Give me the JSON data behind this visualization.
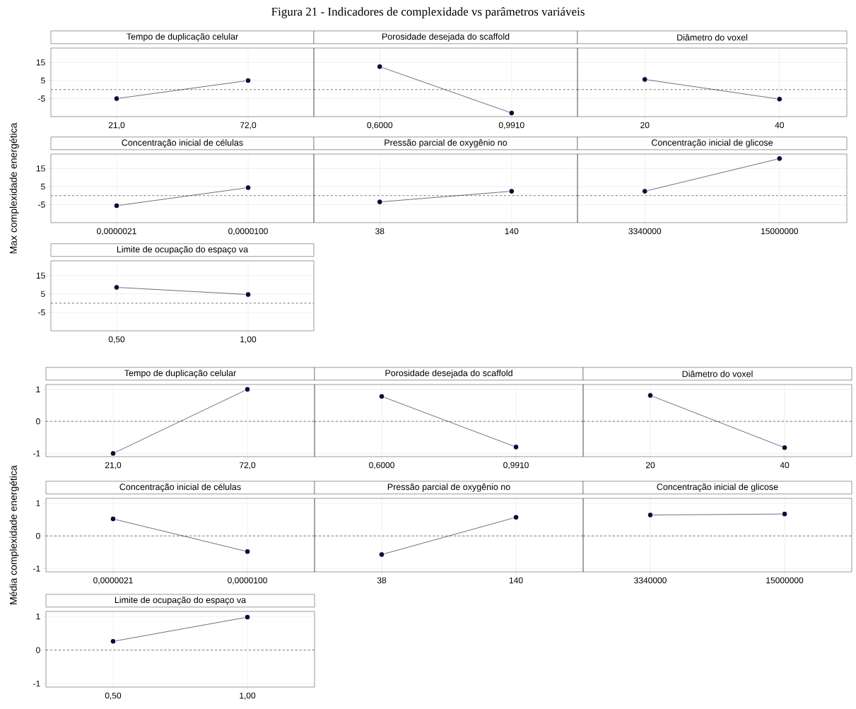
{
  "chart_data": [
    {
      "type": "line",
      "title": "Tempo de duplicação celular",
      "annotations": [
        "Figura 21 - Indicadores de complexidade vs parâmetros variáveis"
      ],
      "categories": [
        "21,0",
        "72,0"
      ],
      "values": [
        -5,
        5
      ],
      "color": "#0b0b3b",
      "marker": "circle",
      "grid": true,
      "ylim": [
        -15,
        23
      ],
      "yticks": [
        -5,
        5,
        15
      ],
      "ref_lines": [
        {
          "axis": "y",
          "value": 0,
          "line_style": "dashed"
        }
      ]
    },
    {
      "type": "line",
      "title": "Porosidade desejada do scaffold",
      "categories": [
        "0,6000",
        "0,9910"
      ],
      "values": [
        12.7,
        -13
      ],
      "color": "#0b0b3b",
      "marker": "circle",
      "grid": true,
      "ylim": [
        -15,
        23
      ],
      "yticks": [
        -5,
        5,
        15
      ],
      "tick_labels": "x",
      "ref_lines": [
        {
          "axis": "y",
          "value": 0,
          "line_style": "dashed"
        }
      ]
    },
    {
      "type": "line",
      "title": "Diâmetro do voxel",
      "categories": [
        "20",
        "40"
      ],
      "values": [
        5.6,
        -5.3
      ],
      "color": "#0b0b3b",
      "marker": "circle",
      "grid": true,
      "ylim": [
        -15,
        23
      ],
      "yticks": [
        -5,
        5,
        15
      ],
      "tick_labels": "x",
      "ref_lines": [
        {
          "axis": "y",
          "value": 0,
          "line_style": "dashed"
        }
      ]
    },
    {
      "type": "line",
      "title": "Concentração inicial de células",
      "ylabel": "Max complexidade energética",
      "categories": [
        "0,0000021",
        "0,0000100"
      ],
      "values": [
        -5.6,
        4.4
      ],
      "color": "#0b0b3b",
      "marker": "circle",
      "grid": true,
      "ylim": [
        -15,
        23
      ],
      "yticks": [
        -5,
        5,
        15
      ],
      "ref_lines": [
        {
          "axis": "y",
          "value": 0,
          "line_style": "dashed"
        }
      ]
    },
    {
      "type": "line",
      "title": "Pressão parcial de oxygênio no",
      "categories": [
        "38",
        "140"
      ],
      "values": [
        -3.5,
        2.4
      ],
      "color": "#0b0b3b",
      "marker": "circle",
      "grid": true,
      "ylim": [
        -15,
        23
      ],
      "yticks": [
        -5,
        5,
        15
      ],
      "tick_labels": "x",
      "ref_lines": [
        {
          "axis": "y",
          "value": 0,
          "line_style": "dashed"
        }
      ]
    },
    {
      "type": "line",
      "title": "Concentração inicial de glicose",
      "categories": [
        "3340000",
        "15000000"
      ],
      "values": [
        2.4,
        20.5
      ],
      "color": "#0b0b3b",
      "marker": "circle",
      "grid": true,
      "ylim": [
        -15,
        23
      ],
      "yticks": [
        -5,
        5,
        15
      ],
      "tick_labels": "x",
      "ref_lines": [
        {
          "axis": "y",
          "value": 0,
          "line_style": "dashed"
        }
      ]
    },
    {
      "type": "line",
      "title": "Limite de ocupação do espaço va",
      "categories": [
        "0,50",
        "1,00"
      ],
      "values": [
        8.6,
        4.7
      ],
      "color": "#0b0b3b",
      "marker": "circle",
      "grid": true,
      "ylim": [
        -15,
        23
      ],
      "yticks": [
        -5,
        5,
        15
      ],
      "ref_lines": [
        {
          "axis": "y",
          "value": 0,
          "line_style": "dashed"
        }
      ]
    },
    {
      "type": "line",
      "title": "Tempo de duplicação celular",
      "categories": [
        "21,0",
        "72,0"
      ],
      "values": [
        -1.0,
        1.0
      ],
      "color": "#0b0b3b",
      "marker": "circle",
      "grid": true,
      "ylim": [
        -1.1,
        1.15
      ],
      "yticks": [
        -1,
        0,
        1
      ],
      "ref_lines": [
        {
          "axis": "y",
          "value": 0,
          "line_style": "dashed"
        }
      ]
    },
    {
      "type": "line",
      "title": "Porosidade desejada do scaffold",
      "categories": [
        "0,6000",
        "0,9910"
      ],
      "values": [
        0.78,
        -0.8
      ],
      "color": "#0b0b3b",
      "marker": "circle",
      "grid": true,
      "ylim": [
        -1.1,
        1.15
      ],
      "yticks": [
        -1,
        0,
        1
      ],
      "tick_labels": "x",
      "ref_lines": [
        {
          "axis": "y",
          "value": 0,
          "line_style": "dashed"
        }
      ]
    },
    {
      "type": "line",
      "title": "Diâmetro do voxel",
      "categories": [
        "20",
        "40"
      ],
      "values": [
        0.81,
        -0.82
      ],
      "color": "#0b0b3b",
      "marker": "circle",
      "grid": true,
      "ylim": [
        -1.1,
        1.15
      ],
      "yticks": [
        -1,
        0,
        1
      ],
      "tick_labels": "x",
      "ref_lines": [
        {
          "axis": "y",
          "value": 0,
          "line_style": "dashed"
        }
      ]
    },
    {
      "type": "line",
      "title": "Concentração inicial de células",
      "ylabel": "Média complexidade energética",
      "categories": [
        "0,0000021",
        "0,0000100"
      ],
      "values": [
        0.52,
        -0.48
      ],
      "color": "#0b0b3b",
      "marker": "circle",
      "grid": true,
      "ylim": [
        -1.1,
        1.15
      ],
      "yticks": [
        -1,
        0,
        1
      ],
      "ref_lines": [
        {
          "axis": "y",
          "value": 0,
          "line_style": "dashed"
        }
      ]
    },
    {
      "type": "line",
      "title": "Pressão parcial de oxygênio no",
      "categories": [
        "38",
        "140"
      ],
      "values": [
        -0.57,
        0.57
      ],
      "color": "#0b0b3b",
      "marker": "circle",
      "grid": true,
      "ylim": [
        -1.1,
        1.15
      ],
      "yticks": [
        -1,
        0,
        1
      ],
      "tick_labels": "x",
      "ref_lines": [
        {
          "axis": "y",
          "value": 0,
          "line_style": "dashed"
        }
      ]
    },
    {
      "type": "line",
      "title": "Concentração inicial de glicose",
      "categories": [
        "3340000",
        "15000000"
      ],
      "values": [
        0.64,
        0.67
      ],
      "color": "#0b0b3b",
      "marker": "circle",
      "grid": true,
      "ylim": [
        -1.1,
        1.15
      ],
      "yticks": [
        -1,
        0,
        1
      ],
      "tick_labels": "x",
      "ref_lines": [
        {
          "axis": "y",
          "value": 0,
          "line_style": "dashed"
        }
      ]
    },
    {
      "type": "line",
      "title": "Limite de ocupação do espaço va",
      "categories": [
        "0,50",
        "1,00"
      ],
      "values": [
        0.26,
        0.98
      ],
      "color": "#0b0b3b",
      "marker": "circle",
      "grid": true,
      "ylim": [
        -1.1,
        1.15
      ],
      "yticks": [
        -1,
        0,
        1
      ],
      "ref_lines": [
        {
          "axis": "y",
          "value": 0,
          "line_style": "dashed"
        }
      ]
    }
  ]
}
